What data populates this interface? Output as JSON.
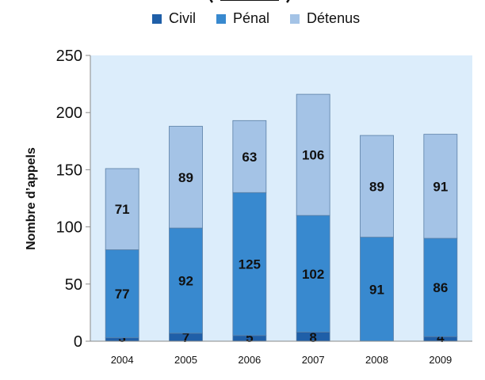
{
  "chart_data": {
    "type": "bar",
    "stacked": true,
    "categories": [
      "2004",
      "2005",
      "2006",
      "2007",
      "2008",
      "2009"
    ],
    "series": [
      {
        "name": "Civil",
        "values": [
          3,
          7,
          5,
          8,
          0,
          4
        ],
        "labels": [
          "3",
          "7",
          "5",
          "8",
          "",
          "4"
        ],
        "color": "#1f5fa8"
      },
      {
        "name": "Pénal",
        "values": [
          77,
          92,
          125,
          102,
          91,
          86
        ],
        "labels": [
          "77",
          "92",
          "125",
          "102",
          "91",
          "86"
        ],
        "color": "#3889cf"
      },
      {
        "name": "Détenus",
        "values": [
          71,
          89,
          63,
          106,
          89,
          91
        ],
        "labels": [
          "71",
          "89",
          "63",
          "106",
          "89",
          "91"
        ],
        "color": "#a4c3e6"
      }
    ],
    "ylabel": "Nombre d’appels",
    "xlabel": "",
    "ylim": [
      0,
      250
    ],
    "yticks": [
      0,
      50,
      100,
      150,
      200,
      250
    ],
    "legend_position": "top",
    "grid": false,
    "plot_background": "#dcedfb"
  }
}
